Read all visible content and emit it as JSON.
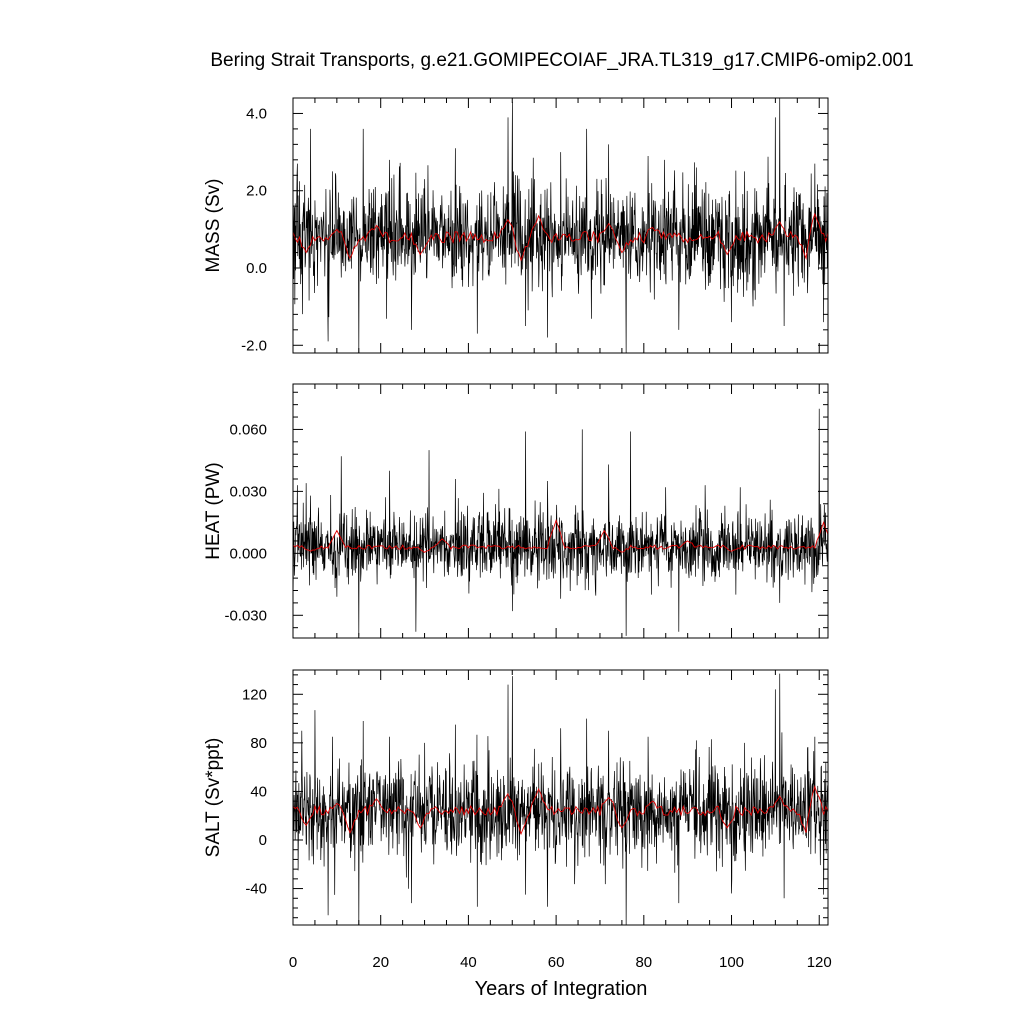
{
  "chart_data": {
    "title": "Bering Strait Transports, g.e21.GOMIPECOIAF_JRA.TL319_g17.CMIP6-omip2.001",
    "xlabel": "Years of Integration",
    "xlim": [
      0,
      122
    ],
    "x_ticks": [
      0,
      20,
      40,
      60,
      80,
      100,
      120
    ],
    "x_tick_labels": [
      "0",
      "20",
      "40",
      "60",
      "80",
      "100",
      "120"
    ],
    "n_samples": 1464,
    "series_colors": {
      "raw": "#000000",
      "smooth": "#e00000"
    },
    "panels": [
      {
        "type": "line",
        "ylabel": "MASS (Sv)",
        "ylim": [
          -2.2,
          4.4
        ],
        "y_ticks": [
          -2.0,
          0.0,
          2.0,
          4.0
        ],
        "y_tick_labels": [
          "-2.0",
          "0.0",
          "2.0",
          "4.0"
        ],
        "raw_mean": 0.8,
        "raw_spread": 0.65,
        "smooth_mean": 0.8,
        "smooth_amplitude": 0.3,
        "spikes": [
          [
            1,
            2.7
          ],
          [
            4,
            3.6
          ],
          [
            9,
            2.5
          ],
          [
            16,
            3.6
          ],
          [
            22,
            2.8
          ],
          [
            30,
            2.3
          ],
          [
            37,
            3.1
          ],
          [
            49,
            3.9
          ],
          [
            50,
            4.3
          ],
          [
            55,
            2.3
          ],
          [
            61,
            3.0
          ],
          [
            67,
            3.6
          ],
          [
            72,
            3.2
          ],
          [
            81,
            2.9
          ],
          [
            92,
            2.6
          ],
          [
            103,
            2.5
          ],
          [
            110,
            3.9
          ],
          [
            111,
            4.4
          ],
          [
            119,
            2.7
          ]
        ],
        "dips": [
          [
            0,
            -1.4
          ],
          [
            8,
            -1.9
          ],
          [
            15,
            -2.2
          ],
          [
            27,
            -1.6
          ],
          [
            42,
            -1.7
          ],
          [
            53,
            -1.5
          ],
          [
            58,
            -1.8
          ],
          [
            76,
            -2.2
          ],
          [
            88,
            -1.6
          ],
          [
            100,
            -1.4
          ],
          [
            112,
            -1.5
          ],
          [
            121,
            -1.4
          ]
        ],
        "smooth_dips": [
          [
            3,
            0.4
          ],
          [
            13,
            0.25
          ],
          [
            29,
            0.35
          ],
          [
            52,
            0.2
          ],
          [
            75,
            0.4
          ],
          [
            99,
            0.35
          ],
          [
            117,
            0.25
          ]
        ],
        "smooth_peaks": [
          [
            10,
            1.0
          ],
          [
            19,
            1.1
          ],
          [
            49,
            1.25
          ],
          [
            56,
            1.35
          ],
          [
            72,
            1.15
          ],
          [
            82,
            1.05
          ],
          [
            111,
            1.2
          ],
          [
            119,
            1.4
          ]
        ]
      },
      {
        "type": "line",
        "ylabel": "HEAT (PW)",
        "ylim": [
          -0.041,
          0.082
        ],
        "y_ticks": [
          -0.03,
          0.0,
          0.03,
          0.06
        ],
        "y_tick_labels": [
          "-0.030",
          "0.000",
          "0.030",
          "0.060"
        ],
        "raw_mean": 0.003,
        "raw_spread": 0.0085,
        "smooth_mean": 0.003,
        "smooth_amplitude": 0.002,
        "spikes": [
          [
            1,
            0.033
          ],
          [
            3,
            0.034
          ],
          [
            11,
            0.047
          ],
          [
            15,
            0.061
          ],
          [
            22,
            0.04
          ],
          [
            31,
            0.05
          ],
          [
            37,
            0.036
          ],
          [
            50,
            0.055
          ],
          [
            53,
            0.059
          ],
          [
            58,
            0.035
          ],
          [
            61,
            0.081
          ],
          [
            66,
            0.06
          ],
          [
            72,
            0.043
          ],
          [
            77,
            0.059
          ],
          [
            85,
            0.032
          ],
          [
            94,
            0.033
          ],
          [
            102,
            0.032
          ],
          [
            111,
            0.057
          ],
          [
            120,
            0.07
          ]
        ],
        "dips": [
          [
            0,
            -0.025
          ],
          [
            10,
            -0.021
          ],
          [
            15,
            -0.04
          ],
          [
            28,
            -0.038
          ],
          [
            50,
            -0.028
          ],
          [
            61,
            -0.022
          ],
          [
            76,
            -0.04
          ],
          [
            88,
            -0.038
          ],
          [
            101,
            -0.02
          ],
          [
            111,
            -0.024
          ]
        ],
        "smooth_dips": [
          [
            4,
            0.001
          ],
          [
            30,
            0.0005
          ],
          [
            75,
            0.0005
          ],
          [
            100,
            0.001
          ]
        ],
        "smooth_peaks": [
          [
            10,
            0.011
          ],
          [
            34,
            0.007
          ],
          [
            60,
            0.016
          ],
          [
            71,
            0.011
          ],
          [
            90,
            0.006
          ],
          [
            121,
            0.015
          ]
        ]
      },
      {
        "type": "line",
        "ylabel": "SALT (Sv*ppt)",
        "ylim": [
          -70,
          140
        ],
        "y_ticks": [
          -40,
          0,
          40,
          80,
          120
        ],
        "y_tick_labels": [
          "-40",
          "0",
          "40",
          "80",
          "120"
        ],
        "raw_mean": 24,
        "raw_spread": 20,
        "smooth_mean": 24,
        "smooth_amplitude": 8,
        "spikes": [
          [
            2,
            90
          ],
          [
            5,
            107
          ],
          [
            9,
            85
          ],
          [
            16,
            98
          ],
          [
            22,
            85
          ],
          [
            30,
            80
          ],
          [
            37,
            95
          ],
          [
            49,
            128
          ],
          [
            50,
            135
          ],
          [
            55,
            75
          ],
          [
            61,
            92
          ],
          [
            67,
            100
          ],
          [
            72,
            90
          ],
          [
            81,
            85
          ],
          [
            92,
            82
          ],
          [
            103,
            80
          ],
          [
            110,
            124
          ],
          [
            111,
            137
          ],
          [
            119,
            85
          ]
        ],
        "dips": [
          [
            0,
            -43
          ],
          [
            8,
            -62
          ],
          [
            15,
            -70
          ],
          [
            27,
            -52
          ],
          [
            42,
            -55
          ],
          [
            53,
            -45
          ],
          [
            58,
            -55
          ],
          [
            76,
            -70
          ],
          [
            88,
            -52
          ],
          [
            100,
            -44
          ],
          [
            112,
            -48
          ],
          [
            121,
            -45
          ]
        ],
        "smooth_dips": [
          [
            3,
            12
          ],
          [
            13,
            6
          ],
          [
            29,
            10
          ],
          [
            52,
            5
          ],
          [
            75,
            10
          ],
          [
            99,
            10
          ],
          [
            117,
            6
          ]
        ],
        "smooth_peaks": [
          [
            10,
            30
          ],
          [
            19,
            34
          ],
          [
            49,
            38
          ],
          [
            56,
            42
          ],
          [
            72,
            35
          ],
          [
            82,
            32
          ],
          [
            111,
            36
          ],
          [
            119,
            44
          ]
        ]
      }
    ]
  }
}
